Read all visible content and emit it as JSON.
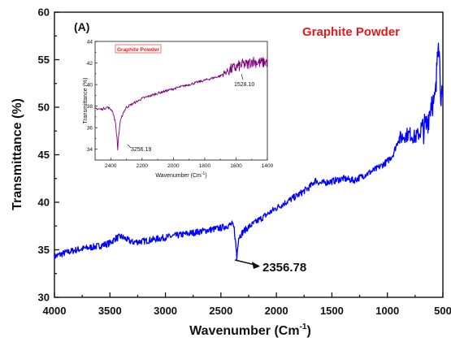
{
  "chart_data": [
    {
      "type": "line",
      "panel_label": "(A)",
      "legend_label": "Graphite Powder",
      "xlabel": "Wavenumber (Cm",
      "xlabel_sup": "-1",
      "xlabel_end": ")",
      "ylabel": "Transmittance (%)",
      "xlim": [
        4000,
        500
      ],
      "ylim": [
        30,
        60
      ],
      "xticks": [
        "4000",
        "3500",
        "3000",
        "2500",
        "2000",
        "1500",
        "1000",
        "500"
      ],
      "yticks": [
        "30",
        "35",
        "40",
        "45",
        "50",
        "55",
        "60"
      ],
      "annotation": "2356.78",
      "series": [
        {
          "color": "#0000ff",
          "x": [
            4000,
            3900,
            3800,
            3700,
            3600,
            3500,
            3450,
            3400,
            3350,
            3300,
            3200,
            3100,
            3000,
            2900,
            2800,
            2700,
            2600,
            2500,
            2450,
            2400,
            2380,
            2370,
            2360,
            2356.78,
            2350,
            2340,
            2320,
            2300,
            2250,
            2200,
            2100,
            2000,
            1900,
            1800,
            1700,
            1650,
            1600,
            1500,
            1400,
            1300,
            1200,
            1100,
            1000,
            950,
            900,
            850,
            800,
            750,
            700,
            650,
            620,
            600,
            580,
            560,
            550,
            540,
            520,
            500
          ],
          "y": [
            34.3,
            34.7,
            35.0,
            35.2,
            35.4,
            35.7,
            36.2,
            36.4,
            36.1,
            35.8,
            35.9,
            36.1,
            36.3,
            36.5,
            36.7,
            36.9,
            37.1,
            37.3,
            37.5,
            37.7,
            37.2,
            36.0,
            34.8,
            34.0,
            35.3,
            36.3,
            36.6,
            36.9,
            37.4,
            37.8,
            38.6,
            39.4,
            40.1,
            40.8,
            41.6,
            42.3,
            42.0,
            42.2,
            42.5,
            42.3,
            42.9,
            43.5,
            44.3,
            45.0,
            46.6,
            47.0,
            47.2,
            46.8,
            47.4,
            48.0,
            49.6,
            51.0,
            50.0,
            52.0,
            56.2,
            58.0,
            52.0,
            50.0
          ]
        }
      ]
    },
    {
      "type": "line",
      "legend_label": "Graphite Powder",
      "xlabel": "Wavenumber (Cm",
      "xlabel_sup": "-1",
      "xlabel_end": ")",
      "ylabel": "Transmittance (%)",
      "xlim": [
        2500,
        1400
      ],
      "ylim": [
        33,
        44
      ],
      "xticks": [
        "2400",
        "2200",
        "2000",
        "1800",
        "1600",
        "1400"
      ],
      "yticks": [
        "34",
        "36",
        "38",
        "40",
        "42",
        "44"
      ],
      "annotations": [
        "3256.19",
        "1528.10"
      ],
      "series": [
        {
          "color": "#800080",
          "x": [
            2500,
            2460,
            2420,
            2390,
            2370,
            2360,
            2356,
            2350,
            2340,
            2320,
            2300,
            2250,
            2200,
            2100,
            2000,
            1900,
            1800,
            1700,
            1650,
            1600,
            1550,
            1528,
            1500,
            1450,
            1400
          ],
          "y": [
            37.8,
            37.7,
            37.9,
            37.6,
            36.5,
            35.0,
            33.9,
            35.2,
            36.5,
            37.4,
            37.9,
            38.3,
            38.7,
            39.2,
            39.6,
            40.0,
            40.4,
            40.8,
            41.3,
            41.6,
            41.9,
            41.8,
            42.2,
            42.0,
            42.1
          ]
        }
      ]
    }
  ]
}
